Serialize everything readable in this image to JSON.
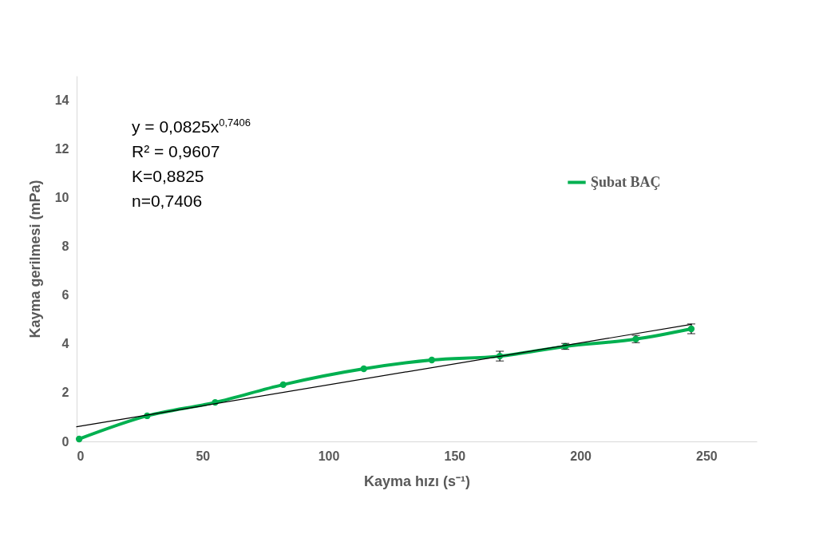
{
  "chart_data": {
    "type": "line",
    "xlabel": "Kayma hızı (s⁻¹)",
    "ylabel": "Kayma gerilmesi (mPa)",
    "xlim": [
      0,
      270
    ],
    "xticks": [
      0,
      50,
      100,
      150,
      200,
      250
    ],
    "ylim": [
      0,
      15
    ],
    "yticks": [
      0,
      2,
      4,
      6,
      8,
      10,
      12,
      14
    ],
    "grid": false,
    "legend": "top right",
    "marker": "circle",
    "annotations": [
      "y = 0,0825x$^{0,7406}$",
      "R² = 0,9607",
      "K=0,8825",
      "n=0,7406"
    ],
    "series": [
      {
        "name": "Şubat BAÇ",
        "color": "#00b050",
        "x": [
          1,
          28,
          55,
          82,
          114,
          141,
          168,
          194,
          222,
          244
        ],
        "values": [
          0.1,
          1.05,
          1.6,
          2.33,
          2.98,
          3.34,
          3.5,
          3.9,
          4.2,
          4.62
        ],
        "errors": [
          null,
          null,
          null,
          null,
          null,
          null,
          0.2,
          0.12,
          0.15,
          0.2
        ]
      },
      {
        "type": "line",
        "color": "#000000",
        "marker": "none",
        "x": [
          0,
          244
        ],
        "values": [
          0.6,
          4.8
        ]
      }
    ]
  }
}
